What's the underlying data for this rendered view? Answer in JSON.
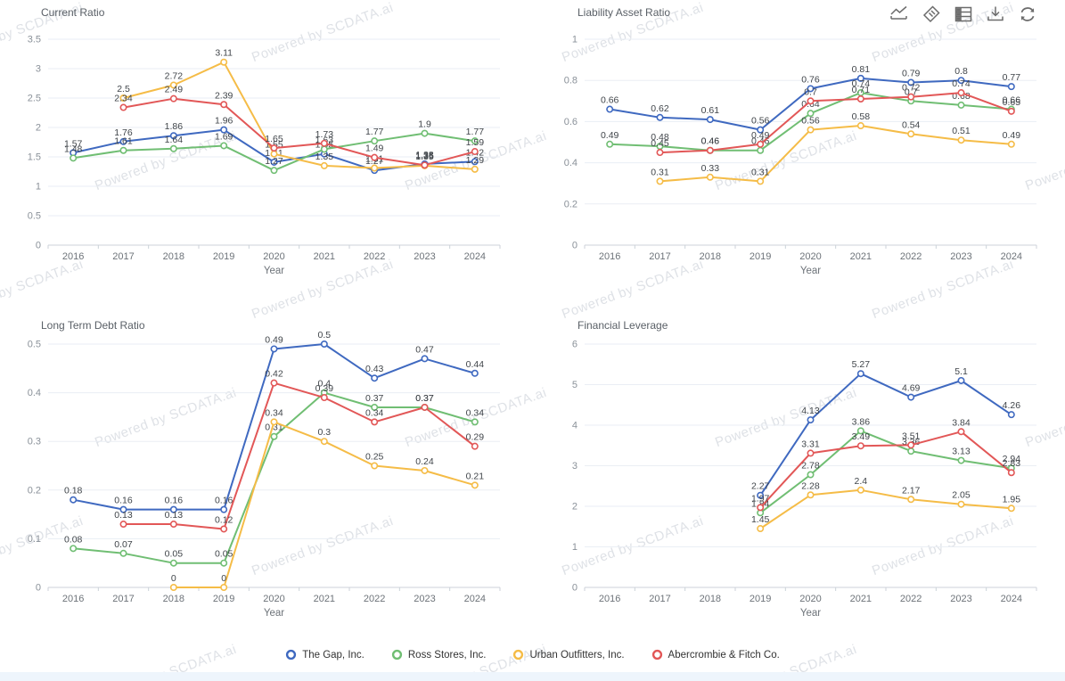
{
  "watermark": {
    "text": "Powered by SCDATA.ai"
  },
  "toolbar": {
    "icons": [
      {
        "name": "line-chart"
      },
      {
        "name": "tag"
      },
      {
        "name": "data-table"
      },
      {
        "name": "download"
      },
      {
        "name": "refresh"
      }
    ]
  },
  "legend": {
    "position": "bottom",
    "items": [
      {
        "label": "The Gap, Inc.",
        "color": "#3f69c0"
      },
      {
        "label": "Ross Stores, Inc.",
        "color": "#70be73"
      },
      {
        "label": "Urban Outfitters, Inc.",
        "color": "#f5bc47"
      },
      {
        "label": "Abercrombie & Fitch Co.",
        "color": "#e25757"
      }
    ]
  },
  "chart_data": [
    {
      "type": "line",
      "title": "Current Ratio",
      "xlabel": "Year",
      "ylabel": "",
      "grid": true,
      "legend_position": "bottom",
      "categories": [
        "2016",
        "2017",
        "2018",
        "2019",
        "2020",
        "2021",
        "2022",
        "2023",
        "2024"
      ],
      "ylim": [
        0,
        3.5
      ],
      "yticks": [
        0,
        0.5,
        1,
        1.5,
        2,
        2.5,
        3,
        3.5
      ],
      "series": [
        {
          "name": "The Gap, Inc.",
          "color": "#3f69c0",
          "values": [
            1.57,
            1.76,
            1.86,
            1.96,
            1.41,
            1.55,
            1.27,
            1.38,
            1.42
          ]
        },
        {
          "name": "Ross Stores, Inc.",
          "color": "#70be73",
          "values": [
            1.48,
            1.61,
            1.64,
            1.69,
            1.27,
            1.63,
            1.77,
            1.9,
            1.77
          ]
        },
        {
          "name": "Urban Outfitters, Inc.",
          "color": "#f5bc47",
          "values": [
            null,
            2.5,
            2.72,
            3.11,
            1.55,
            1.35,
            1.31,
            1.35,
            1.29
          ]
        },
        {
          "name": "Abercrombie & Fitch Co.",
          "color": "#e25757",
          "values": [
            null,
            2.34,
            2.49,
            2.39,
            1.65,
            1.73,
            1.49,
            1.36,
            1.59
          ]
        }
      ]
    },
    {
      "type": "line",
      "title": "Liability Asset Ratio",
      "xlabel": "Year",
      "ylabel": "",
      "grid": true,
      "legend_position": "bottom",
      "categories": [
        "2016",
        "2017",
        "2018",
        "2019",
        "2020",
        "2021",
        "2022",
        "2023",
        "2024"
      ],
      "ylim": [
        0,
        1
      ],
      "yticks": [
        0,
        0.2,
        0.4,
        0.6,
        0.8,
        1
      ],
      "series": [
        {
          "name": "The Gap, Inc.",
          "color": "#3f69c0",
          "values": [
            0.66,
            0.62,
            0.61,
            0.56,
            0.76,
            0.81,
            0.79,
            0.8,
            0.77
          ]
        },
        {
          "name": "Ross Stores, Inc.",
          "color": "#70be73",
          "values": [
            0.49,
            0.48,
            0.46,
            0.46,
            0.64,
            0.74,
            0.7,
            0.68,
            0.66
          ]
        },
        {
          "name": "Urban Outfitters, Inc.",
          "color": "#f5bc47",
          "values": [
            null,
            0.31,
            0.33,
            0.31,
            0.56,
            0.58,
            0.54,
            0.51,
            0.49
          ]
        },
        {
          "name": "Abercrombie & Fitch Co.",
          "color": "#e25757",
          "values": [
            null,
            0.45,
            0.46,
            0.49,
            0.7,
            0.71,
            0.72,
            0.74,
            0.65
          ]
        }
      ]
    },
    {
      "type": "line",
      "title": "Long Term Debt Ratio",
      "xlabel": "Year",
      "ylabel": "",
      "grid": true,
      "legend_position": "bottom",
      "categories": [
        "2016",
        "2017",
        "2018",
        "2019",
        "2020",
        "2021",
        "2022",
        "2023",
        "2024"
      ],
      "ylim": [
        0,
        0.5
      ],
      "yticks": [
        0,
        0.1,
        0.2,
        0.3,
        0.4,
        0.5
      ],
      "series": [
        {
          "name": "The Gap, Inc.",
          "color": "#3f69c0",
          "values": [
            0.18,
            0.16,
            0.16,
            0.16,
            0.49,
            0.5,
            0.43,
            0.47,
            0.44
          ]
        },
        {
          "name": "Ross Stores, Inc.",
          "color": "#70be73",
          "values": [
            0.08,
            0.07,
            0.05,
            0.05,
            0.31,
            0.4,
            0.37,
            0.37,
            0.34
          ]
        },
        {
          "name": "Urban Outfitters, Inc.",
          "color": "#f5bc47",
          "values": [
            null,
            null,
            0,
            0,
            0.34,
            0.3,
            0.25,
            0.24,
            0.21
          ]
        },
        {
          "name": "Abercrombie & Fitch Co.",
          "color": "#e25757",
          "values": [
            null,
            0.13,
            0.13,
            0.12,
            0.42,
            0.39,
            0.34,
            0.37,
            0.29
          ]
        }
      ]
    },
    {
      "type": "line",
      "title": "Financial Leverage",
      "xlabel": "Year",
      "ylabel": "",
      "grid": true,
      "legend_position": "bottom",
      "categories": [
        "2016",
        "2017",
        "2018",
        "2019",
        "2020",
        "2021",
        "2022",
        "2023",
        "2024"
      ],
      "ylim": [
        0,
        6
      ],
      "yticks": [
        0,
        1,
        2,
        3,
        4,
        5,
        6
      ],
      "series": [
        {
          "name": "The Gap, Inc.",
          "color": "#3f69c0",
          "values": [
            null,
            null,
            null,
            2.27,
            4.13,
            5.27,
            4.69,
            5.1,
            4.26
          ]
        },
        {
          "name": "Ross Stores, Inc.",
          "color": "#70be73",
          "values": [
            null,
            null,
            null,
            1.84,
            2.78,
            3.86,
            3.36,
            3.13,
            2.94
          ]
        },
        {
          "name": "Urban Outfitters, Inc.",
          "color": "#f5bc47",
          "values": [
            null,
            null,
            null,
            1.45,
            2.28,
            2.4,
            2.17,
            2.05,
            1.95
          ]
        },
        {
          "name": "Abercrombie & Fitch Co.",
          "color": "#e25757",
          "values": [
            null,
            null,
            null,
            1.97,
            3.31,
            3.49,
            3.51,
            3.84,
            2.83
          ]
        }
      ]
    }
  ]
}
